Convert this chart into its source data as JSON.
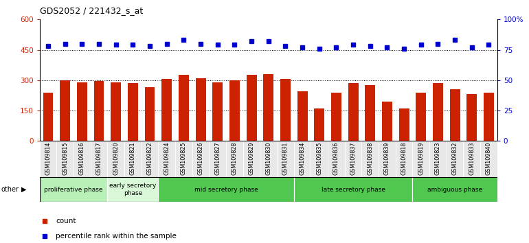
{
  "title": "GDS2052 / 221432_s_at",
  "samples": [
    "GSM109814",
    "GSM109815",
    "GSM109816",
    "GSM109817",
    "GSM109820",
    "GSM109821",
    "GSM109822",
    "GSM109824",
    "GSM109825",
    "GSM109826",
    "GSM109827",
    "GSM109828",
    "GSM109829",
    "GSM109830",
    "GSM109831",
    "GSM109834",
    "GSM109835",
    "GSM109836",
    "GSM109837",
    "GSM109838",
    "GSM109839",
    "GSM109818",
    "GSM109819",
    "GSM109823",
    "GSM109832",
    "GSM109833",
    "GSM109840"
  ],
  "counts": [
    240,
    300,
    290,
    295,
    288,
    285,
    265,
    305,
    325,
    308,
    290,
    300,
    325,
    330,
    305,
    245,
    160,
    238,
    285,
    275,
    195,
    160,
    238,
    285,
    255,
    230,
    238
  ],
  "percentile_ranks": [
    78,
    80,
    80,
    80,
    79,
    79,
    78,
    80,
    83,
    80,
    79,
    79,
    82,
    82,
    78,
    77,
    76,
    77,
    79,
    78,
    77,
    76,
    79,
    80,
    83,
    77,
    79
  ],
  "phases": [
    {
      "label": "proliferative phase",
      "start": 0,
      "end": 4,
      "color": "#b8f0b8"
    },
    {
      "label": "early secretory\nphase",
      "start": 4,
      "end": 7,
      "color": "#d8f8d8"
    },
    {
      "label": "mid secretory phase",
      "start": 7,
      "end": 15,
      "color": "#50c850"
    },
    {
      "label": "late secretory phase",
      "start": 15,
      "end": 22,
      "color": "#50c850"
    },
    {
      "label": "ambiguous phase",
      "start": 22,
      "end": 27,
      "color": "#50c850"
    }
  ],
  "ylim_left": [
    0,
    600
  ],
  "ylim_right": [
    0,
    100
  ],
  "yticks_left": [
    0,
    150,
    300,
    450,
    600
  ],
  "yticks_right": [
    0,
    25,
    50,
    75,
    100
  ],
  "bar_color": "#CC2200",
  "dot_color": "#0000CC",
  "grid_values": [
    150,
    300,
    450
  ],
  "ylabel_left_color": "#CC2200",
  "ylabel_right_color": "#0000CC"
}
